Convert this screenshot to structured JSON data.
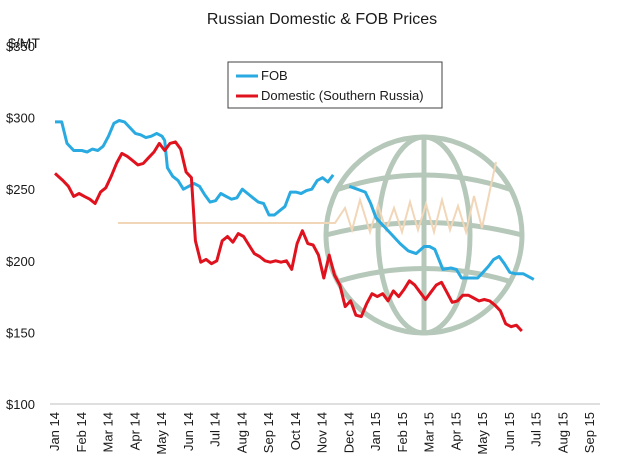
{
  "chart_data": {
    "type": "line",
    "title": "Russian Domestic & FOB Prices",
    "unit_label": "$/MT",
    "ylim": [
      100,
      350
    ],
    "ytick_labels": [
      "$100",
      "$150",
      "$200",
      "$250",
      "$300",
      "$350"
    ],
    "yticks": [
      100,
      150,
      200,
      250,
      300,
      350
    ],
    "xlim": [
      0,
      20
    ],
    "xtick_labels": [
      "Jan 14",
      "Feb 14",
      "Mar 14",
      "Apr 14",
      "May 14",
      "Jun 14",
      "Jul 14",
      "Aug 14",
      "Sep 14",
      "Oct 14",
      "Nov 14",
      "Dec 14",
      "Jan 15",
      "Feb 15",
      "Mar 15",
      "Apr 15",
      "May 15",
      "Jun 15",
      "Jul 15",
      "Aug 15",
      "Sep 15"
    ],
    "grid": false,
    "legend_position": "top-center",
    "colors": {
      "FOB": "#29aae1",
      "Domestic": "#e0121e",
      "watermark": "#a9bfae",
      "watermark_line": "#f2d6b8"
    },
    "series": [
      {
        "name": "FOB",
        "segments": [
          [
            [
              0,
              297
            ],
            [
              0.25,
              297
            ],
            [
              0.45,
              282
            ],
            [
              0.7,
              277
            ],
            [
              1,
              277
            ],
            [
              1.2,
              276
            ],
            [
              1.4,
              278
            ],
            [
              1.6,
              277
            ],
            [
              1.8,
              280
            ],
            [
              2,
              287
            ],
            [
              2.2,
              296
            ],
            [
              2.4,
              298
            ],
            [
              2.6,
              297
            ],
            [
              2.8,
              293
            ],
            [
              3,
              289
            ],
            [
              3.2,
              288
            ],
            [
              3.4,
              286
            ],
            [
              3.6,
              287
            ],
            [
              3.8,
              289
            ],
            [
              4,
              287
            ],
            [
              4.1,
              284
            ],
            [
              4.2,
              265
            ],
            [
              4.4,
              259
            ],
            [
              4.6,
              256
            ],
            [
              4.8,
              250
            ],
            [
              5,
              252
            ],
            [
              5.2,
              254
            ],
            [
              5.4,
              252
            ],
            [
              5.6,
              246
            ],
            [
              5.8,
              241
            ],
            [
              6,
              242
            ],
            [
              6.2,
              247
            ],
            [
              6.4,
              245
            ],
            [
              6.6,
              243
            ],
            [
              6.8,
              244
            ],
            [
              7,
              250
            ],
            [
              7.2,
              247
            ],
            [
              7.4,
              244
            ],
            [
              7.6,
              241
            ],
            [
              7.8,
              240
            ],
            [
              8,
              232
            ],
            [
              8.2,
              232
            ],
            [
              8.4,
              235
            ],
            [
              8.6,
              238
            ],
            [
              8.8,
              248
            ],
            [
              9,
              248
            ],
            [
              9.2,
              247
            ],
            [
              9.4,
              249
            ],
            [
              9.6,
              250
            ],
            [
              9.8,
              256
            ],
            [
              10,
              258
            ],
            [
              10.2,
              255
            ],
            [
              10.4,
              260
            ]
          ],
          [
            [
              11,
              252
            ],
            [
              11.3,
              250
            ],
            [
              11.6,
              248
            ],
            [
              11.8,
              240
            ],
            [
              12,
              230
            ],
            [
              12.3,
              224
            ],
            [
              12.6,
              218
            ],
            [
              12.9,
              212
            ],
            [
              13.2,
              207
            ],
            [
              13.5,
              205
            ],
            [
              13.8,
              210
            ],
            [
              14,
              210
            ],
            [
              14.2,
              208
            ],
            [
              14.5,
              194
            ],
            [
              14.8,
              195
            ],
            [
              15,
              194
            ],
            [
              15.2,
              188
            ],
            [
              15.5,
              188
            ],
            [
              15.8,
              188
            ],
            [
              16,
              192
            ],
            [
              16.2,
              196
            ],
            [
              16.4,
              201
            ],
            [
              16.6,
              203
            ],
            [
              16.8,
              198
            ],
            [
              17,
              192
            ],
            [
              17.2,
              191
            ],
            [
              17.5,
              191
            ],
            [
              17.7,
              189
            ],
            [
              17.9,
              187
            ]
          ]
        ]
      },
      {
        "name": "Domestic (Southern Russia)",
        "segments": [
          [
            [
              0,
              261
            ],
            [
              0.3,
              256
            ],
            [
              0.5,
              252
            ],
            [
              0.7,
              245
            ],
            [
              0.9,
              247
            ],
            [
              1.1,
              245
            ],
            [
              1.3,
              243
            ],
            [
              1.5,
              240
            ],
            [
              1.7,
              248
            ],
            [
              1.9,
              251
            ],
            [
              2.1,
              259
            ],
            [
              2.3,
              268
            ],
            [
              2.5,
              275
            ],
            [
              2.7,
              273
            ],
            [
              2.9,
              270
            ],
            [
              3.1,
              267
            ],
            [
              3.3,
              268
            ],
            [
              3.5,
              272
            ],
            [
              3.7,
              276
            ],
            [
              3.9,
              282
            ],
            [
              4.1,
              277
            ],
            [
              4.3,
              282
            ],
            [
              4.5,
              283
            ],
            [
              4.7,
              278
            ],
            [
              4.9,
              262
            ],
            [
              5.1,
              258
            ],
            [
              5.25,
              214
            ],
            [
              5.45,
              199
            ],
            [
              5.65,
              201
            ],
            [
              5.85,
              198
            ],
            [
              6.05,
              200
            ],
            [
              6.25,
              214
            ],
            [
              6.45,
              217
            ],
            [
              6.65,
              213
            ],
            [
              6.85,
              219
            ],
            [
              7.05,
              217
            ],
            [
              7.25,
              211
            ],
            [
              7.45,
              205
            ],
            [
              7.65,
              203
            ],
            [
              7.85,
              200
            ],
            [
              8.05,
              199
            ],
            [
              8.25,
              200
            ],
            [
              8.45,
              199
            ],
            [
              8.65,
              200
            ],
            [
              8.85,
              194
            ],
            [
              9.05,
              212
            ],
            [
              9.25,
              221
            ],
            [
              9.45,
              212
            ],
            [
              9.65,
              211
            ],
            [
              9.85,
              204
            ],
            [
              10.05,
              188
            ],
            [
              10.25,
              204
            ],
            [
              10.45,
              190
            ],
            [
              10.65,
              183
            ],
            [
              10.85,
              168
            ],
            [
              11.05,
              172
            ],
            [
              11.25,
              162
            ],
            [
              11.45,
              161
            ],
            [
              11.65,
              170
            ],
            [
              11.85,
              177
            ],
            [
              12.05,
              175
            ],
            [
              12.25,
              177
            ],
            [
              12.45,
              172
            ],
            [
              12.65,
              179
            ],
            [
              12.85,
              175
            ],
            [
              13.05,
              180
            ],
            [
              13.25,
              186
            ],
            [
              13.45,
              183
            ],
            [
              13.65,
              178
            ],
            [
              13.85,
              173
            ],
            [
              14.05,
              178
            ],
            [
              14.25,
              183
            ],
            [
              14.45,
              185
            ],
            [
              14.65,
              178
            ],
            [
              14.85,
              171
            ],
            [
              15.05,
              172
            ],
            [
              15.25,
              176
            ],
            [
              15.45,
              176
            ],
            [
              15.65,
              174
            ],
            [
              15.85,
              172
            ],
            [
              16.05,
              173
            ],
            [
              16.25,
              172
            ],
            [
              16.45,
              169
            ],
            [
              16.65,
              165
            ],
            [
              16.85,
              156
            ],
            [
              17.05,
              154
            ],
            [
              17.25,
              155
            ],
            [
              17.45,
              151
            ]
          ]
        ]
      }
    ]
  },
  "watermark": {
    "description_icon": "globe-icon"
  }
}
